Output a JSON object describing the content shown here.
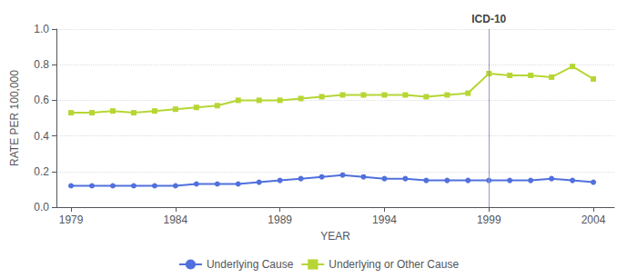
{
  "chart_data": {
    "type": "line",
    "xlabel": "YEAR",
    "ylabel": "RATE PER 100,000",
    "x": [
      1979,
      1980,
      1981,
      1982,
      1983,
      1984,
      1985,
      1986,
      1987,
      1988,
      1989,
      1990,
      1991,
      1992,
      1993,
      1994,
      1995,
      1996,
      1997,
      1998,
      1999,
      2000,
      2001,
      2002,
      2003,
      2004
    ],
    "series": [
      {
        "name": "Underlying Cause",
        "marker": "circle",
        "values": [
          0.12,
          0.12,
          0.12,
          0.12,
          0.12,
          0.12,
          0.13,
          0.13,
          0.13,
          0.14,
          0.15,
          0.16,
          0.17,
          0.18,
          0.17,
          0.16,
          0.16,
          0.15,
          0.15,
          0.15,
          0.15,
          0.15,
          0.15,
          0.16,
          0.15,
          0.14
        ]
      },
      {
        "name": "Underlying or Other Cause",
        "marker": "square",
        "values": [
          0.53,
          0.53,
          0.54,
          0.53,
          0.54,
          0.55,
          0.56,
          0.57,
          0.6,
          0.6,
          0.6,
          0.61,
          0.62,
          0.63,
          0.63,
          0.63,
          0.63,
          0.62,
          0.63,
          0.64,
          0.75,
          0.74,
          0.74,
          0.73,
          0.79,
          0.72
        ]
      }
    ],
    "annotations": [
      {
        "text": "ICD-10",
        "x": 1999
      }
    ],
    "xlim": [
      1978.3,
      2005.0
    ],
    "xticks": [
      1979,
      1984,
      1989,
      1994,
      1999,
      2004
    ],
    "ylim": [
      0.0,
      1.0
    ],
    "yticks": [
      {
        "value": 0.0,
        "label": "0.0"
      },
      0.2,
      0.4,
      0.6,
      0.8,
      {
        "value": 1.0,
        "label": "1.0"
      }
    ],
    "grid": true,
    "legend": "bottom"
  }
}
